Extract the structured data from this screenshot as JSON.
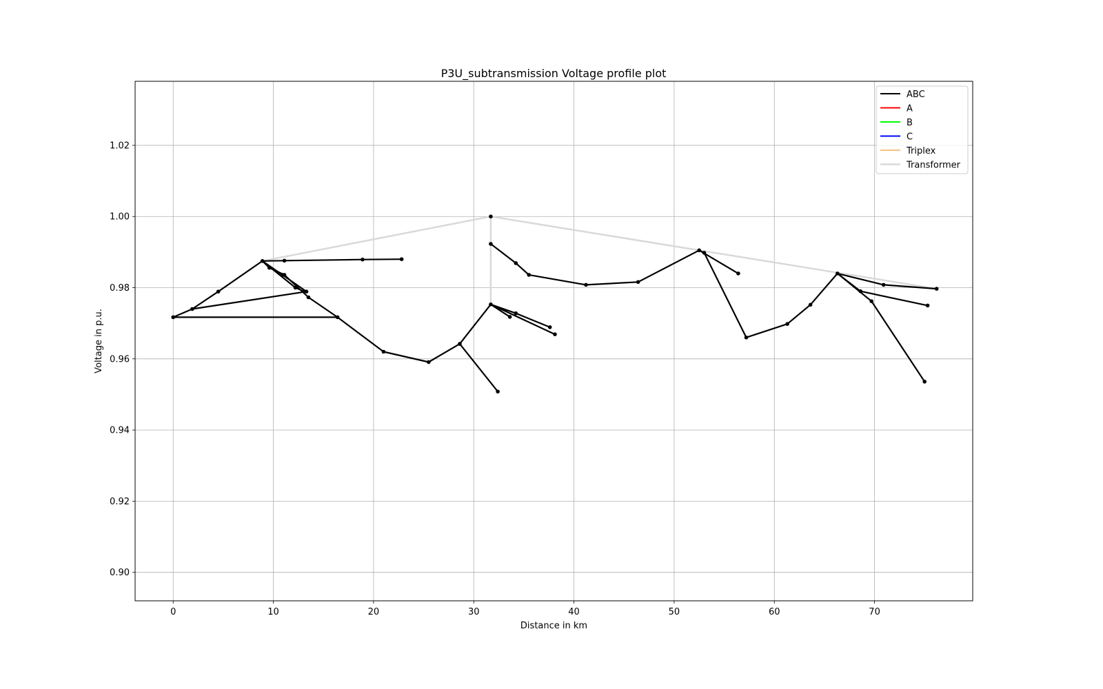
{
  "chart_data": {
    "type": "line",
    "title": "P3U_subtransmission Voltage profile plot",
    "xlabel": "Distance in km",
    "ylabel": "Voltage in p.u.",
    "xlim": [
      -3.8,
      79.8
    ],
    "ylim": [
      0.892,
      1.038
    ],
    "x_ticks": [
      0,
      10,
      20,
      30,
      40,
      50,
      60,
      70
    ],
    "y_ticks": [
      0.9,
      0.92,
      0.94,
      0.96,
      0.98,
      1.0,
      1.02
    ],
    "y_tick_labels": [
      "0.90",
      "0.92",
      "0.94",
      "0.96",
      "0.98",
      "1.00",
      "1.02"
    ],
    "grid": true,
    "legend_position": "top-right",
    "legend": [
      {
        "label": "ABC",
        "color": "#000000",
        "width": 2
      },
      {
        "label": "A",
        "color": "#ff0000",
        "width": 2
      },
      {
        "label": "B",
        "color": "#00ff00",
        "width": 2
      },
      {
        "label": "C",
        "color": "#0000ff",
        "width": 2
      },
      {
        "label": "Triplex",
        "color": "#f0a030",
        "width": 1.2
      },
      {
        "label": "Transformer",
        "color": "#d9d9d9",
        "width": 2.5
      }
    ],
    "transformer_segments": [
      [
        [
          31.7,
          1.0
        ],
        [
          8.9,
          0.9875
        ]
      ],
      [
        [
          31.7,
          1.0
        ],
        [
          31.7,
          0.9923
        ]
      ],
      [
        [
          31.7,
          0.9923
        ],
        [
          31.7,
          0.9753
        ]
      ],
      [
        [
          31.7,
          1.0
        ],
        [
          76.2,
          0.9797
        ]
      ]
    ],
    "abc_segments": [
      [
        [
          0,
          0.9717
        ],
        [
          16.4,
          0.9717
        ],
        [
          21.0,
          0.962
        ],
        [
          25.5,
          0.9591
        ],
        [
          28.6,
          0.9642
        ],
        [
          31.7,
          0.9753
        ],
        [
          33.6,
          0.9718
        ]
      ],
      [
        [
          0,
          0.9717
        ],
        [
          1.9,
          0.974
        ],
        [
          4.5,
          0.9789
        ],
        [
          8.9,
          0.9875
        ],
        [
          11.1,
          0.9876
        ],
        [
          18.9,
          0.9879
        ],
        [
          22.8,
          0.988
        ]
      ],
      [
        [
          1.9,
          0.974
        ],
        [
          13.3,
          0.9789
        ]
      ],
      [
        [
          8.9,
          0.9875
        ],
        [
          9.6,
          0.9856
        ],
        [
          11.1,
          0.9836
        ],
        [
          13.5,
          0.9773
        ],
        [
          16.4,
          0.9717
        ]
      ],
      [
        [
          8.9,
          0.9875
        ],
        [
          12.2,
          0.98
        ],
        [
          13.1,
          0.9789
        ]
      ],
      [
        [
          8.9,
          0.9875
        ],
        [
          10.9,
          0.9836
        ],
        [
          13.3,
          0.9789
        ]
      ],
      [
        [
          28.6,
          0.9642
        ],
        [
          32.4,
          0.9508
        ]
      ],
      [
        [
          31.7,
          0.9753
        ],
        [
          34.2,
          0.9728
        ],
        [
          37.6,
          0.9689
        ]
      ],
      [
        [
          31.7,
          0.9753
        ],
        [
          38.1,
          0.9669
        ]
      ],
      [
        [
          31.7,
          0.9923
        ],
        [
          34.2,
          0.9869
        ],
        [
          35.5,
          0.9836
        ],
        [
          41.2,
          0.9808
        ],
        [
          46.4,
          0.9816
        ],
        [
          52.5,
          0.9905
        ],
        [
          56.4,
          0.984
        ]
      ],
      [
        [
          52.5,
          0.9905
        ],
        [
          53.0,
          0.9898
        ],
        [
          57.2,
          0.966
        ],
        [
          61.3,
          0.9698
        ],
        [
          63.6,
          0.9752
        ],
        [
          66.3,
          0.984
        ],
        [
          70.9,
          0.9808
        ],
        [
          76.2,
          0.9797
        ]
      ],
      [
        [
          66.3,
          0.984
        ],
        [
          69.7,
          0.9762
        ],
        [
          75.0,
          0.9536
        ]
      ],
      [
        [
          66.3,
          0.984
        ],
        [
          68.6,
          0.979
        ],
        [
          75.3,
          0.975
        ]
      ]
    ],
    "points": [
      [
        0,
        0.9717
      ],
      [
        1.9,
        0.974
      ],
      [
        4.5,
        0.9789
      ],
      [
        8.9,
        0.9875
      ],
      [
        9.6,
        0.9856
      ],
      [
        10.9,
        0.9836
      ],
      [
        11.1,
        0.9836
      ],
      [
        11.1,
        0.9876
      ],
      [
        12.2,
        0.98
      ],
      [
        13.3,
        0.9789
      ],
      [
        13.5,
        0.9773
      ],
      [
        16.4,
        0.9717
      ],
      [
        18.9,
        0.9879
      ],
      [
        22.8,
        0.988
      ],
      [
        21.0,
        0.962
      ],
      [
        25.5,
        0.9591
      ],
      [
        28.6,
        0.9642
      ],
      [
        32.4,
        0.9508
      ],
      [
        31.7,
        1.0
      ],
      [
        31.7,
        0.9923
      ],
      [
        31.7,
        0.9753
      ],
      [
        33.6,
        0.9718
      ],
      [
        34.2,
        0.9728
      ],
      [
        37.6,
        0.9689
      ],
      [
        38.1,
        0.9669
      ],
      [
        34.2,
        0.9869
      ],
      [
        35.5,
        0.9836
      ],
      [
        41.2,
        0.9808
      ],
      [
        46.4,
        0.9816
      ],
      [
        52.5,
        0.9905
      ],
      [
        53.0,
        0.9898
      ],
      [
        56.4,
        0.984
      ],
      [
        57.2,
        0.966
      ],
      [
        61.3,
        0.9698
      ],
      [
        63.6,
        0.9752
      ],
      [
        66.3,
        0.984
      ],
      [
        68.6,
        0.979
      ],
      [
        69.7,
        0.9762
      ],
      [
        70.9,
        0.9808
      ],
      [
        75.0,
        0.9536
      ],
      [
        75.3,
        0.975
      ],
      [
        76.2,
        0.9797
      ]
    ]
  }
}
